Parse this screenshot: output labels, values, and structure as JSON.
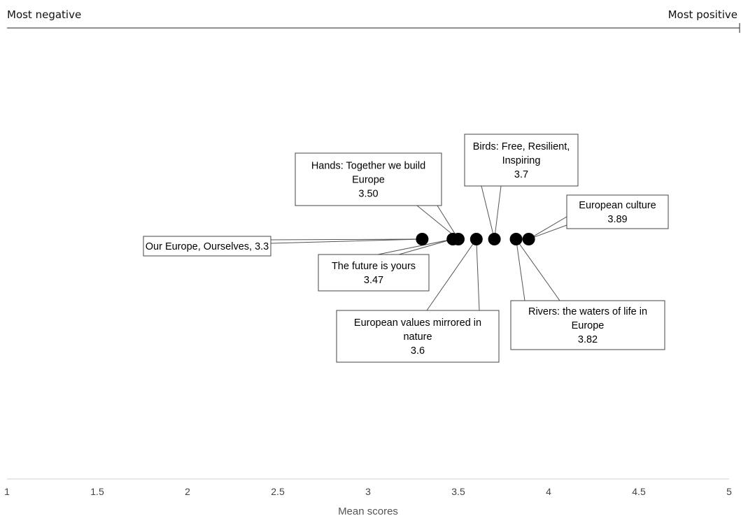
{
  "scale": {
    "left": "Most negative",
    "right": "Most positive"
  },
  "chart_data": {
    "type": "scatter",
    "xlabel": "Mean scores",
    "xlim": [
      1,
      5
    ],
    "xticks": [
      "1",
      "1.5",
      "2",
      "2.5",
      "3",
      "3.5",
      "4",
      "4.5",
      "5"
    ],
    "points": [
      {
        "x": 3.3,
        "lines": [
          "Our Europe, Ourselves, 3.3"
        ]
      },
      {
        "x": 3.47,
        "lines": [
          "The future is yours",
          "3.47"
        ]
      },
      {
        "x": 3.5,
        "lines": [
          "Hands: Together we build",
          "Europe",
          "3.50"
        ]
      },
      {
        "x": 3.6,
        "lines": [
          "European values mirrored in",
          "nature",
          "3.6"
        ]
      },
      {
        "x": 3.7,
        "lines": [
          "Birds: Free, Resilient,",
          "Inspiring",
          "3.7"
        ]
      },
      {
        "x": 3.82,
        "lines": [
          "Rivers: the waters of life in",
          "Europe",
          "3.82"
        ]
      },
      {
        "x": 3.89,
        "lines": [
          "European culture",
          "3.89"
        ]
      }
    ],
    "marker_color": "#000000"
  }
}
